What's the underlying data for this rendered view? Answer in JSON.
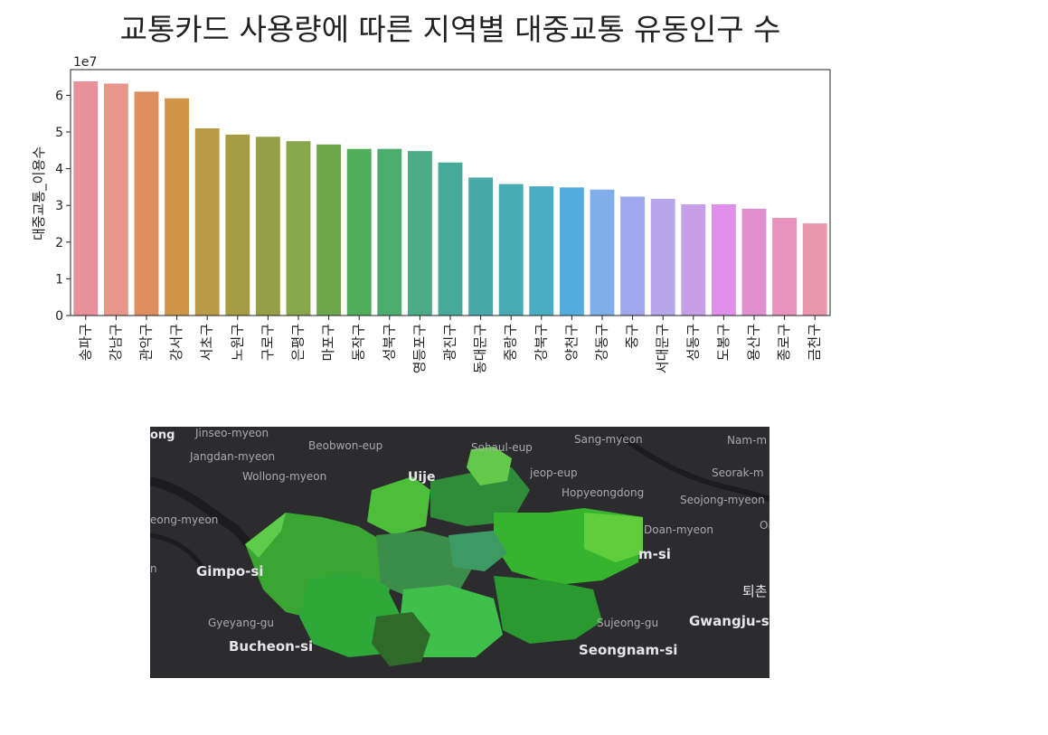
{
  "chart_data": {
    "type": "bar",
    "title": "교통카드 사용량에 따른 지역별 대중교통 유동인구 수",
    "xlabel": "",
    "ylabel": "대중교통_이용수",
    "offset_text": "1e7",
    "ylim": [
      0,
      67000000
    ],
    "yticks": [
      0,
      1,
      2,
      3,
      4,
      5,
      6
    ],
    "grid": false,
    "legend": "none",
    "categories": [
      "송파구",
      "강남구",
      "관악구",
      "강서구",
      "서초구",
      "노원구",
      "구로구",
      "은평구",
      "마포구",
      "동작구",
      "성북구",
      "영등포구",
      "광진구",
      "동대문구",
      "중랑구",
      "강북구",
      "양천구",
      "강동구",
      "중구",
      "서대문구",
      "성동구",
      "도봉구",
      "용산구",
      "종로구",
      "금천구"
    ],
    "values": [
      63800000,
      63200000,
      61000000,
      59200000,
      51000000,
      49300000,
      48700000,
      47500000,
      46600000,
      45400000,
      45400000,
      44800000,
      41700000,
      37600000,
      35800000,
      35200000,
      34900000,
      34300000,
      32400000,
      31800000,
      30300000,
      30300000,
      29100000,
      26600000,
      25100000
    ],
    "colors": [
      "#e8919a",
      "#e8958a",
      "#df8e5e",
      "#cf9548",
      "#b99b47",
      "#a69c44",
      "#95a046",
      "#88a64a",
      "#6ea64d",
      "#4fae5a",
      "#4bae6e",
      "#49ac87",
      "#47aa99",
      "#48aaa8",
      "#48aab3",
      "#4aadc1",
      "#52ace0",
      "#7faee8",
      "#9fa8ec",
      "#b8a5ea",
      "#c69fe8",
      "#df8ee9",
      "#e08fcf",
      "#e893bd",
      "#e997ad"
    ]
  },
  "map": {
    "labels_small": [
      "Jinseo-myeon",
      "Beobwon-eup",
      "Sang-myeon",
      "Nam-m",
      "Jangdan-myeon",
      "Sohaul-eup",
      "Wollong-myeon",
      "jeop-eup",
      "Seorak-m",
      "Hopyeongdong",
      "Seojong-myeon",
      "eong-myeon",
      "Doan-myeon",
      "Gyeyang-gu",
      "Sujeong-gu",
      "Oi",
      "n"
    ],
    "labels_big": [
      "ong",
      "Uije",
      "Gimpo-si",
      "m-si",
      "퇴촌",
      "Bucheon-si",
      "Gwangju-s",
      "Seongnam-si"
    ]
  }
}
